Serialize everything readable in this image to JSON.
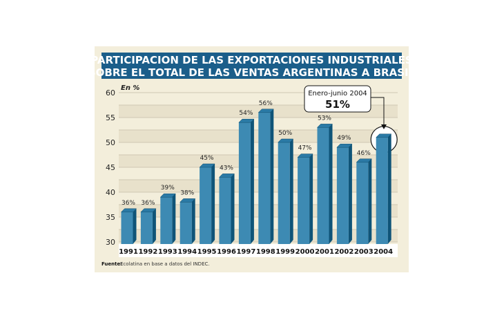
{
  "chart_data": {
    "type": "bar",
    "title": "PARTICIPACION DE LAS EXPORTACIONES INDUSTRIALES SOBRE EL TOTAL DE LAS VENTAS ARGENTINAS A BRASIL",
    "title_lines": [
      "PARTICIPACION DE LAS EXPORTACIONES INDUSTRIALES",
      "SOBRE EL TOTAL DE LAS VENTAS ARGENTINAS A BRASIL"
    ],
    "ylabel": "En %",
    "xlabel": "",
    "ylim": [
      30,
      60
    ],
    "yticks": [
      30,
      35,
      40,
      45,
      50,
      55,
      60
    ],
    "grid": true,
    "categories": [
      "1991",
      "1992",
      "1993",
      "1994",
      "1995",
      "1996",
      "1997",
      "1998",
      "1999",
      "2000",
      "2001",
      "2002",
      "2003",
      "2004"
    ],
    "values": [
      36,
      36,
      39,
      38,
      45,
      43,
      54,
      56,
      50,
      47,
      53,
      49,
      46,
      51
    ],
    "data_labels": [
      "36%",
      "36%",
      "39%",
      "38%",
      "45%",
      "43%",
      "54%",
      "56%",
      "50%",
      "47%",
      "53%",
      "49%",
      "46%",
      ""
    ],
    "annotation": {
      "line1": "Enero-junio 2004",
      "line2": "51%",
      "target": "2004"
    },
    "source_label": "Fuente:",
    "source_text": "Ecolatina en base a datos del INDEC.",
    "colors": {
      "title_bg": "#1b5e8a",
      "bar_front": "#3d8ab3",
      "bar_side": "#0f5478",
      "bar_top": "#2b7aa6",
      "panel_bg": "#f3eedb"
    }
  }
}
